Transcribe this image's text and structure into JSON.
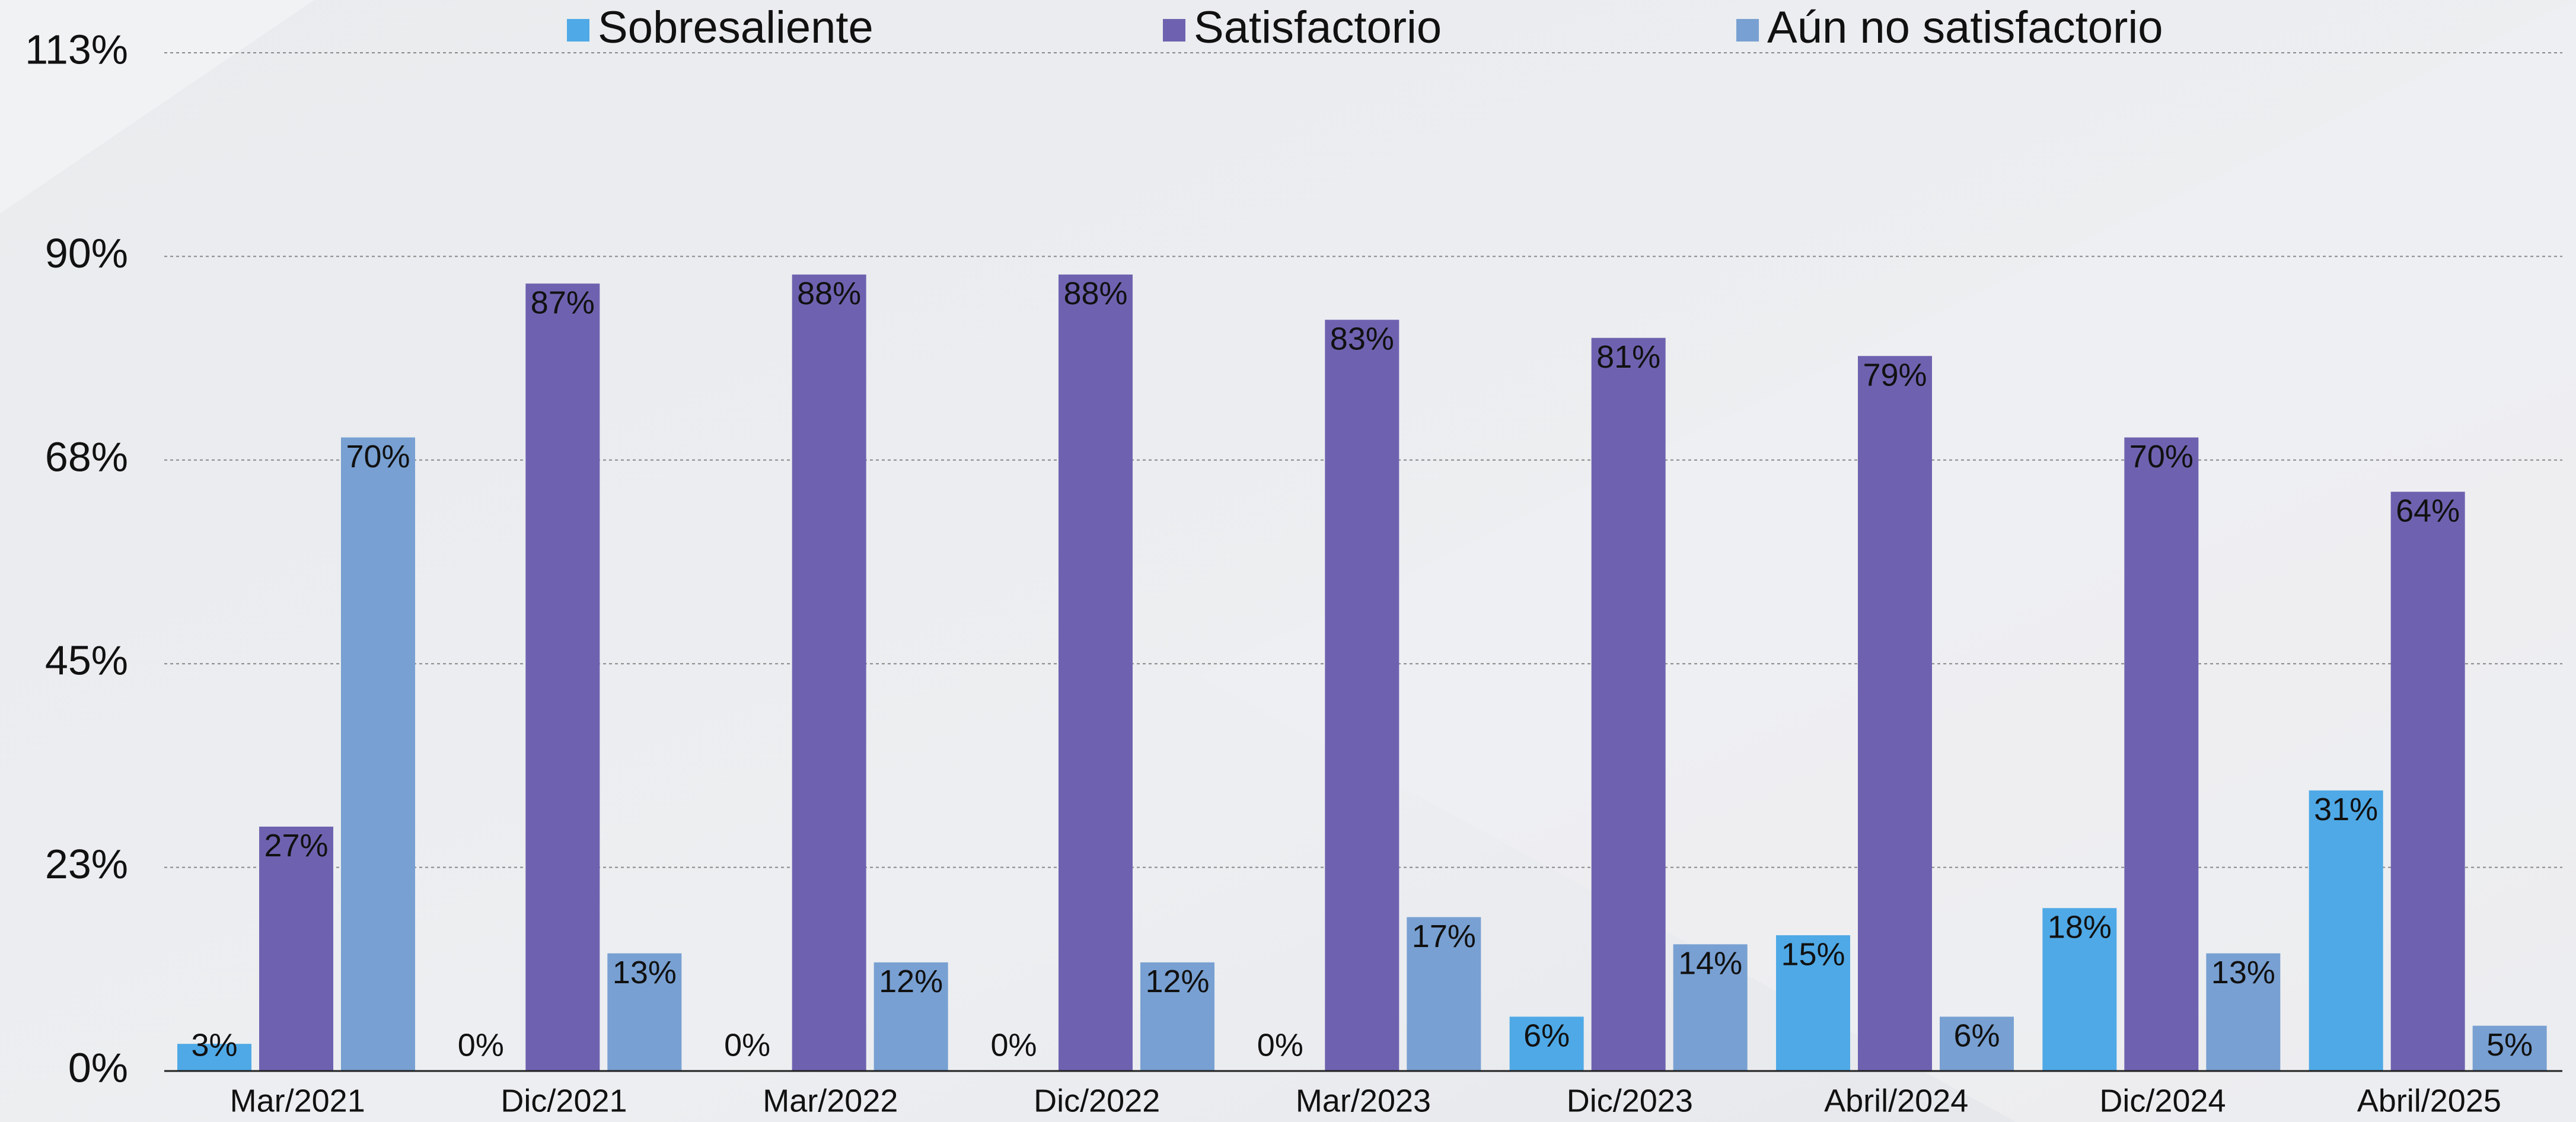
{
  "chart_data": {
    "type": "bar",
    "categories": [
      "Mar/2021",
      "Dic/2021",
      "Mar/2022",
      "Dic/2022",
      "Mar/2023",
      "Dic/2023",
      "Abril/2024",
      "Dic/2024",
      "Abril/2025"
    ],
    "series": [
      {
        "name": "Sobresaliente",
        "color": "#4fa9e6",
        "values": [
          3,
          0,
          0,
          0,
          0,
          6,
          15,
          18,
          31
        ],
        "value_labels": [
          "3%",
          "0%",
          "0%",
          "0%",
          "0%",
          "6%",
          "15%",
          "18%",
          "31%"
        ]
      },
      {
        "name": "Satisfactorio",
        "color": "#6e62b0",
        "values": [
          27,
          87,
          88,
          88,
          83,
          81,
          79,
          70,
          64
        ],
        "value_labels": [
          "27%",
          "87%",
          "88%",
          "88%",
          "83%",
          "81%",
          "79%",
          "70%",
          "64%"
        ]
      },
      {
        "name": "Aún no satisfactorio",
        "color": "#78a0d2",
        "values": [
          70,
          13,
          12,
          12,
          17,
          14,
          6,
          13,
          5
        ],
        "value_labels": [
          "70%",
          "13%",
          "12%",
          "12%",
          "17%",
          "14%",
          "6%",
          "13%",
          "5%"
        ]
      }
    ],
    "ylim": [
      0,
      112.5
    ],
    "yticks": [
      {
        "value": 0,
        "label": "0%"
      },
      {
        "value": 22.5,
        "label": "23%"
      },
      {
        "value": 45,
        "label": "45%"
      },
      {
        "value": 67.5,
        "label": "68%"
      },
      {
        "value": 90,
        "label": "90%"
      },
      {
        "value": 112.5,
        "label": "113%"
      }
    ],
    "grid": true,
    "legend": "top"
  }
}
